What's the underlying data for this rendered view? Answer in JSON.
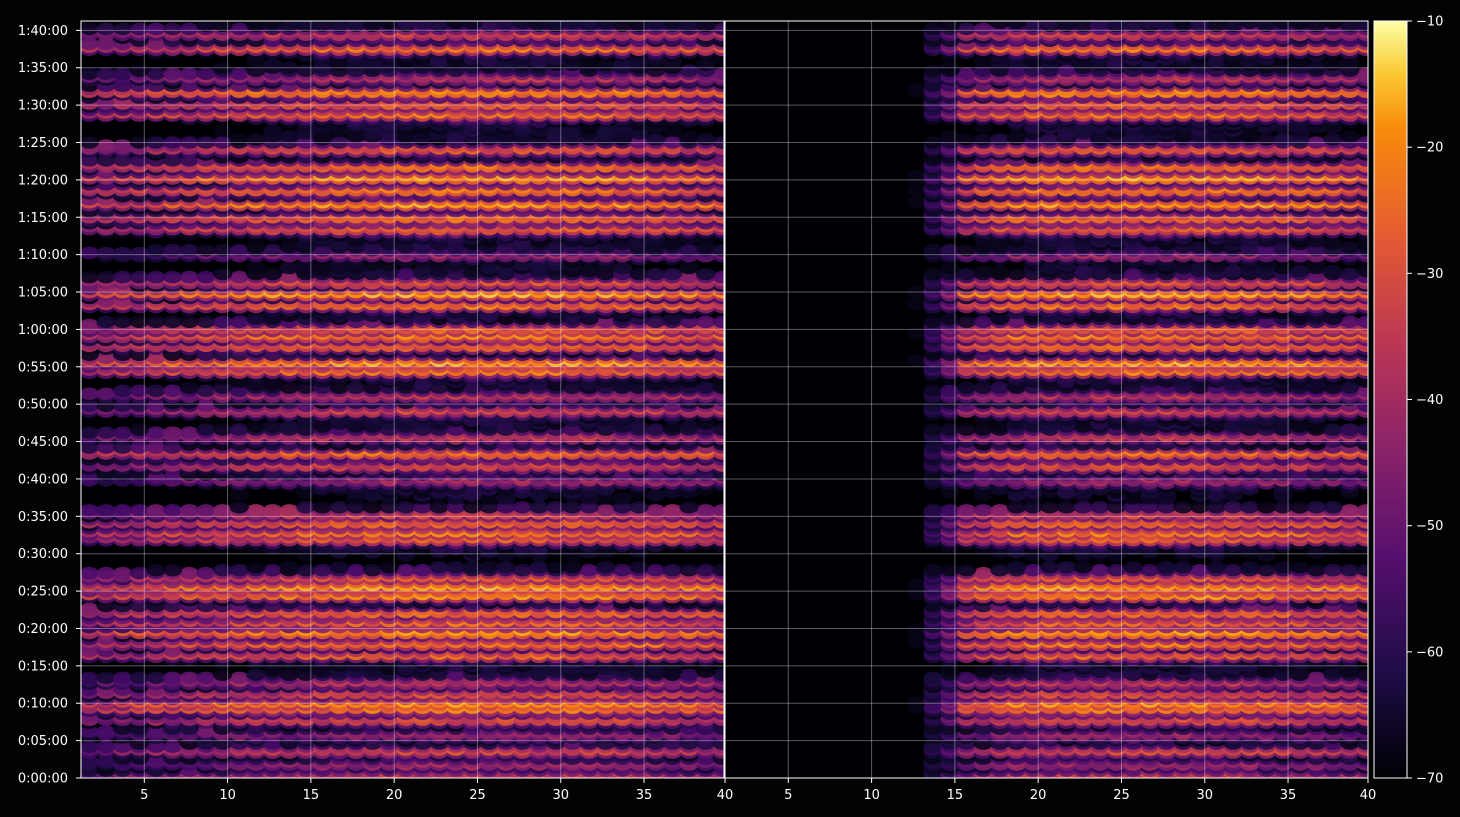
{
  "chart_data": {
    "type": "heatmap",
    "title": "",
    "xlabel": "",
    "ylabel": "",
    "colormap": "inferno",
    "background": "#000000",
    "grid": true,
    "panels": [
      {
        "name": "left",
        "xlim": [
          1.2,
          39.8
        ],
        "xticks": [
          5,
          10,
          15,
          20,
          25,
          30,
          35
        ],
        "xtick_labels": [
          "5",
          "10",
          "15",
          "20",
          "25",
          "30",
          "35"
        ],
        "ylim_seconds": [
          0,
          6075
        ],
        "yticks_seconds": [
          0,
          300,
          600,
          900,
          1200,
          1500,
          1800,
          2100,
          2400,
          2700,
          3000,
          3300,
          3600,
          3900,
          4200,
          4500,
          4800,
          5100,
          5400,
          5700,
          6000
        ],
        "ytick_labels": [
          "0:00:00",
          "0:05:00",
          "0:10:00",
          "0:15:00",
          "0:20:00",
          "0:25:00",
          "0:30:00",
          "0:35:00",
          "0:40:00",
          "0:45:00",
          "0:50:00",
          "0:55:00",
          "1:00:00",
          "1:05:00",
          "1:10:00",
          "1:15:00",
          "1:20:00",
          "1:25:00",
          "1:30:00",
          "1:35:00",
          "1:40:00"
        ],
        "active_x_range": [
          1.2,
          39.5
        ]
      },
      {
        "name": "right",
        "xlim": [
          1.2,
          39.8
        ],
        "xticks": [
          5,
          10,
          15,
          20,
          25,
          30,
          35,
          40
        ],
        "xtick_labels": [
          "5",
          "10",
          "15",
          "20",
          "25",
          "30",
          "35",
          "40"
        ],
        "left_edge_tick_label": "40",
        "active_x_range": [
          15.0,
          39.5
        ],
        "active_fade_start": 12.5
      }
    ],
    "colorbar": {
      "range": [
        -70,
        -10
      ],
      "ticks": [
        -10,
        -20,
        -30,
        -40,
        -50,
        -60,
        -70
      ],
      "tick_labels": [
        "−10",
        "−20",
        "−30",
        "−40",
        "−50",
        "−60",
        "−70"
      ]
    },
    "series": [
      {
        "description": "intensity bands over time (levels in dB, colorbar units)",
        "bands_seconds": [
          {
            "t": 30,
            "level": -38
          },
          {
            "t": 120,
            "level": -44
          },
          {
            "t": 230,
            "level": -35
          },
          {
            "t": 360,
            "level": -45
          },
          {
            "t": 480,
            "level": -33
          },
          {
            "t": 570,
            "level": -26
          },
          {
            "t": 610,
            "level": -24
          },
          {
            "t": 690,
            "level": -34
          },
          {
            "t": 780,
            "level": -40
          },
          {
            "t": 1000,
            "level": -30
          },
          {
            "t": 1090,
            "level": -27
          },
          {
            "t": 1180,
            "level": -22
          },
          {
            "t": 1260,
            "level": -30
          },
          {
            "t": 1340,
            "level": -28
          },
          {
            "t": 1480,
            "level": -24
          },
          {
            "t": 1550,
            "level": -21
          },
          {
            "t": 1620,
            "level": -33
          },
          {
            "t": 1930,
            "level": -32
          },
          {
            "t": 1980,
            "level": -27
          },
          {
            "t": 2060,
            "level": -29
          },
          {
            "t": 2130,
            "level": -36
          },
          {
            "t": 2400,
            "level": -43
          },
          {
            "t": 2520,
            "level": -34
          },
          {
            "t": 2620,
            "level": -27
          },
          {
            "t": 2750,
            "level": -38
          },
          {
            "t": 2960,
            "level": -36
          },
          {
            "t": 3080,
            "level": -40
          },
          {
            "t": 3280,
            "level": -27
          },
          {
            "t": 3350,
            "level": -21
          },
          {
            "t": 3480,
            "level": -28
          },
          {
            "t": 3560,
            "level": -26
          },
          {
            "t": 3620,
            "level": -30
          },
          {
            "t": 3810,
            "level": -27
          },
          {
            "t": 3900,
            "level": -20
          },
          {
            "t": 3990,
            "level": -33
          },
          {
            "t": 4200,
            "level": -40
          },
          {
            "t": 4420,
            "level": -30
          },
          {
            "t": 4510,
            "level": -27
          },
          {
            "t": 4620,
            "level": -22
          },
          {
            "t": 4730,
            "level": -26
          },
          {
            "t": 4830,
            "level": -21
          },
          {
            "t": 4920,
            "level": -27
          },
          {
            "t": 5060,
            "level": -32
          },
          {
            "t": 5340,
            "level": -28
          },
          {
            "t": 5420,
            "level": -30
          },
          {
            "t": 5520,
            "level": -23
          },
          {
            "t": 5630,
            "level": -40
          },
          {
            "t": 5870,
            "level": -28
          },
          {
            "t": 5980,
            "level": -36
          }
        ],
        "bright_x_center": 25,
        "dark_gaps_seconds": [
          4170,
          2200,
          1740
        ]
      }
    ]
  }
}
